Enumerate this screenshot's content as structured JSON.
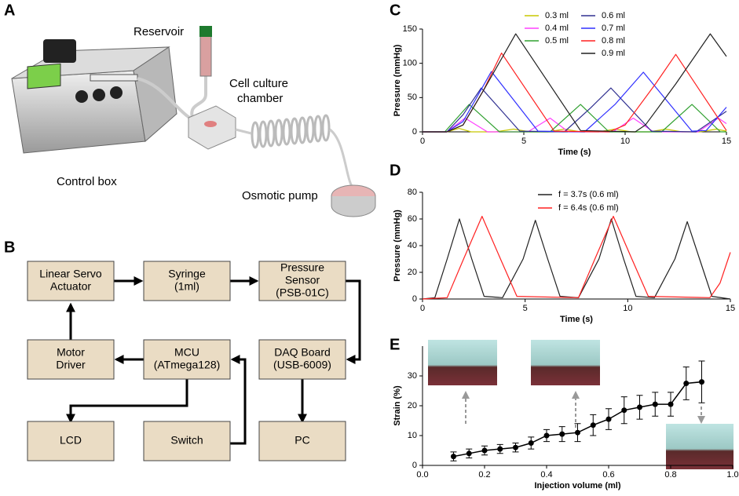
{
  "panel_labels": [
    "A",
    "B",
    "C",
    "D",
    "E"
  ],
  "illustration": {
    "labels": [
      "Reservoir",
      "Cell culture",
      "chamber",
      "Control  box",
      "Osmotic pump"
    ]
  },
  "block_diagram": {
    "nodes": [
      {
        "lines": [
          "Linear Servo",
          "Actuator"
        ]
      },
      {
        "lines": [
          "Syringe",
          "(1ml)"
        ]
      },
      {
        "lines": [
          "Pressure",
          "Sensor",
          "(PSB-01C)"
        ]
      },
      {
        "lines": [
          "Motor",
          "Driver"
        ]
      },
      {
        "lines": [
          "MCU",
          "(ATmega128)"
        ]
      },
      {
        "lines": [
          "DAQ Board",
          "(USB-6009)"
        ]
      },
      {
        "lines": [
          "LCD"
        ]
      },
      {
        "lines": [
          "Switch"
        ]
      },
      {
        "lines": [
          "PC"
        ]
      }
    ]
  },
  "chart_data": [
    {
      "type": "line",
      "xlabel": "Time (s)",
      "ylabel": "Pressure (mmHg)",
      "xlim": [
        0,
        15
      ],
      "ylim": [
        0,
        150
      ],
      "xticks": [
        0,
        5,
        10,
        15
      ],
      "yticks": [
        0,
        50,
        100,
        150
      ],
      "series": [
        {
          "name": "0.3 ml",
          "color": "#c8c800",
          "x": [
            0,
            1.2,
            1.8,
            2.4,
            3.6,
            4.5,
            5.3,
            6.2,
            7.0,
            7.8,
            8.7,
            9.5,
            10.3,
            11.2,
            12.0,
            12.8,
            13.7,
            14.5,
            15
          ],
          "values": [
            0,
            0,
            5,
            0,
            0,
            4,
            0,
            0,
            4,
            0,
            0,
            4,
            0,
            0,
            4,
            0,
            0,
            4,
            1
          ]
        },
        {
          "name": "0.4 ml",
          "color": "#ff40ff",
          "x": [
            0,
            1.2,
            2.1,
            3.2,
            5.2,
            6.3,
            7.2,
            9.4,
            10.4,
            11.4,
            13.6,
            14.6,
            15
          ],
          "values": [
            0,
            0,
            20,
            0,
            0,
            20,
            0,
            0,
            20,
            0,
            0,
            20,
            12
          ]
        },
        {
          "name": "0.5 ml",
          "color": "#30a030",
          "x": [
            0,
            1.1,
            2.3,
            3.8,
            6.3,
            7.8,
            9.2,
            11.8,
            13.3,
            14.7,
            15
          ],
          "values": [
            0,
            0,
            40,
            0,
            0,
            40,
            0,
            0,
            40,
            0,
            0
          ]
        },
        {
          "name": "0.6 ml",
          "color": "#303090",
          "x": [
            0,
            1.2,
            2.0,
            2.9,
            4.8,
            7.0,
            8.3,
            9.3,
            11.3,
            13.5,
            15
          ],
          "values": [
            0,
            0,
            25,
            64,
            1,
            0,
            35,
            64,
            1,
            0,
            30
          ]
        },
        {
          "name": "0.7 ml",
          "color": "#3030ff",
          "x": [
            0,
            1.2,
            2.0,
            3.4,
            5.7,
            8.0,
            9.5,
            10.9,
            13.3,
            14.0,
            15
          ],
          "values": [
            0,
            0,
            15,
            88,
            1,
            0,
            40,
            87,
            1,
            2,
            36
          ]
        },
        {
          "name": "0.8 ml",
          "color": "#ff2020",
          "x": [
            0,
            1.2,
            2.0,
            3.0,
            3.9,
            6.5,
            9.2,
            10.0,
            11.5,
            12.5,
            15
          ],
          "values": [
            0,
            0,
            10,
            60,
            115,
            1,
            0,
            10,
            70,
            113,
            2
          ]
        },
        {
          "name": "0.9 ml",
          "color": "#202020",
          "x": [
            0,
            1.2,
            2.0,
            3.0,
            4.6,
            7.8,
            10.5,
            11.0,
            12.5,
            14.2,
            15
          ],
          "values": [
            0,
            0,
            10,
            60,
            143,
            2,
            0,
            10,
            70,
            143,
            110
          ]
        }
      ]
    },
    {
      "type": "line",
      "xlabel": "Time (s)",
      "ylabel": "Pressure (mmHg)",
      "xlim": [
        0,
        15
      ],
      "ylim": [
        0,
        80
      ],
      "xticks": [
        0,
        5,
        10,
        15
      ],
      "yticks": [
        0,
        20,
        40,
        60,
        80
      ],
      "series": [
        {
          "name": "f = 3.7s (0.6 ml)",
          "color": "#202020",
          "x": [
            0,
            0.6,
            1.2,
            1.8,
            2.4,
            3.0,
            3.9,
            4.9,
            5.5,
            6.1,
            6.7,
            7.6,
            8.6,
            9.2,
            9.8,
            10.4,
            11.3,
            12.3,
            12.9,
            13.5,
            14.1,
            15
          ],
          "values": [
            0,
            1,
            30,
            60,
            30,
            2,
            1,
            30,
            59,
            30,
            2,
            1,
            30,
            60,
            30,
            2,
            1,
            30,
            58,
            30,
            2,
            0
          ]
        },
        {
          "name": "f = 6.4s (0.6 ml)",
          "color": "#ff2020",
          "x": [
            0,
            1.2,
            2.0,
            2.9,
            3.8,
            4.6,
            7.6,
            8.4,
            9.3,
            10.2,
            11.0,
            14.0,
            14.5,
            15
          ],
          "values": [
            0,
            1,
            30,
            62,
            30,
            2,
            1,
            30,
            62,
            30,
            2,
            1,
            12,
            35
          ]
        }
      ]
    },
    {
      "type": "errorbar",
      "xlabel": "Injection volume (ml)",
      "ylabel": "Strain (%)",
      "xlim": [
        0,
        1
      ],
      "ylim": [
        0,
        40
      ],
      "xticks": [
        {
          "value": 0,
          "label": "0.0"
        },
        0.2,
        0.4,
        0.6,
        0.8,
        {
          "value": 1,
          "label": "1.0"
        }
      ],
      "yticks": [
        0,
        10,
        20,
        30
      ],
      "x": [
        0.1,
        0.15,
        0.2,
        0.25,
        0.3,
        0.35,
        0.4,
        0.45,
        0.5,
        0.55,
        0.6,
        0.65,
        0.7,
        0.75,
        0.8,
        0.85,
        0.9
      ],
      "values": [
        3,
        4,
        5,
        5.5,
        6,
        7.5,
        10,
        10.5,
        11,
        13.5,
        15.5,
        18.5,
        19.5,
        20.5,
        20.5,
        27.5,
        28
      ],
      "errors": [
        1.5,
        1.5,
        1.5,
        1.5,
        1.5,
        2,
        2,
        2.5,
        3,
        3.5,
        3.5,
        4.5,
        4,
        4,
        4,
        5.5,
        7
      ],
      "color": "#000000"
    }
  ]
}
